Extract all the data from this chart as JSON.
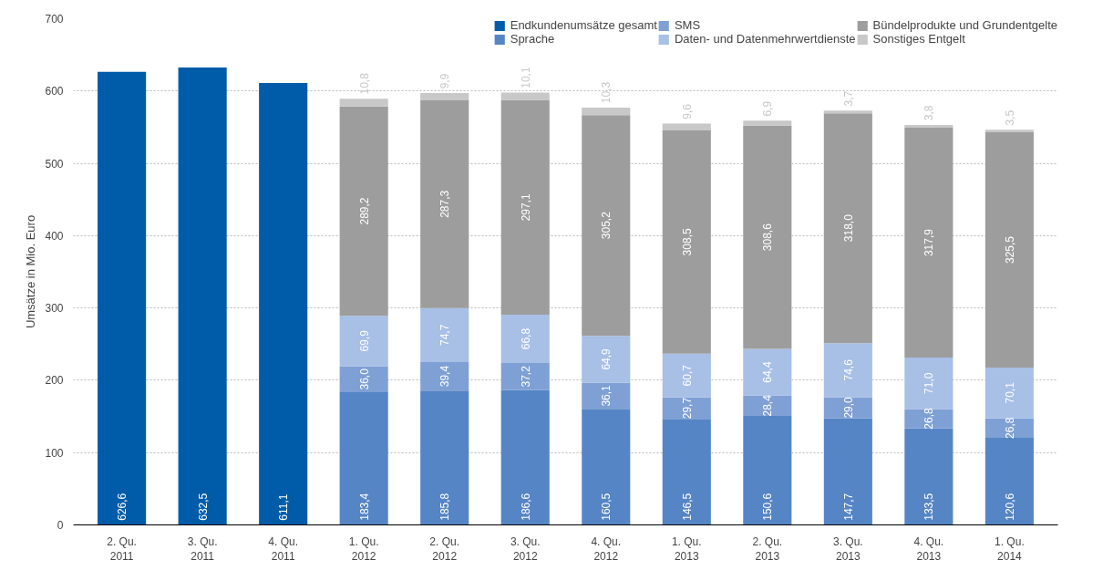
{
  "chart_data": {
    "type": "bar",
    "stacked": true,
    "ylabel": "Umsätze in Mio. Euro",
    "categories": [
      "2. Qu.\n2011",
      "3. Qu.\n2011",
      "4. Qu.\n2011",
      "1. Qu.\n2012",
      "2. Qu.\n2012",
      "3. Qu.\n2012",
      "4. Qu.\n2012",
      "1. Qu.\n2013",
      "2. Qu.\n2013",
      "3. Qu.\n2013",
      "4. Qu.\n2013",
      "1. Qu.\n2014"
    ],
    "series": [
      {
        "name": "Endkundenumsätze gesamt",
        "color": "#005ca9",
        "values": [
          626.6,
          632.5,
          611.1,
          null,
          null,
          null,
          null,
          null,
          null,
          null,
          null,
          null
        ],
        "value_labels": [
          "626,6",
          "632,5",
          "611,1",
          null,
          null,
          null,
          null,
          null,
          null,
          null,
          null,
          null
        ]
      },
      {
        "name": "Sprache",
        "color": "#5585c5",
        "values": [
          null,
          null,
          null,
          183.4,
          185.8,
          186.6,
          160.5,
          146.5,
          150.6,
          147.7,
          133.5,
          120.6
        ],
        "value_labels": [
          null,
          null,
          null,
          "183,4",
          "185,8",
          "186,6",
          "160,5",
          "146,5",
          "150,6",
          "147,7",
          "133,5",
          "120,6"
        ]
      },
      {
        "name": "SMS",
        "color": "#7fa0d4",
        "values": [
          null,
          null,
          null,
          36.0,
          39.4,
          37.2,
          36.1,
          29.7,
          28.4,
          29.0,
          26.8,
          26.8
        ],
        "value_labels": [
          null,
          null,
          null,
          "36,0",
          "39,4",
          "37,2",
          "36,1",
          "29,7",
          "28,4",
          "29,0",
          "26,8",
          "26,8"
        ]
      },
      {
        "name": "Daten- und Datenmehrwertdienste",
        "color": "#a8bfe6",
        "values": [
          null,
          null,
          null,
          69.9,
          74.7,
          66.8,
          64.9,
          60.7,
          64.4,
          74.6,
          71.0,
          70.1
        ],
        "value_labels": [
          null,
          null,
          null,
          "69,9",
          "74,7",
          "66,8",
          "64,9",
          "60,7",
          "64,4",
          "74,6",
          "71,0",
          "70,1"
        ]
      },
      {
        "name": "Bündelprodukte und Grundentgelte",
        "color": "#9d9d9d",
        "values": [
          null,
          null,
          null,
          289.2,
          287.3,
          297.1,
          305.2,
          308.5,
          308.6,
          318.0,
          317.9,
          325.5
        ],
        "value_labels": [
          null,
          null,
          null,
          "289,2",
          "287,3",
          "297,1",
          "305,2",
          "308,5",
          "308,6",
          "318,0",
          "317,9",
          "325,5"
        ]
      },
      {
        "name": "Sonstiges Entgelt",
        "color": "#c8c8c8",
        "values": [
          null,
          null,
          null,
          10.8,
          9.9,
          10.1,
          10.3,
          9.6,
          6.9,
          3.7,
          3.8,
          3.5
        ],
        "value_labels": [
          null,
          null,
          null,
          "10,8",
          "9,9",
          "10,1",
          "10,3",
          "9,6",
          "6,9",
          "3,7",
          "3,8",
          "3,5"
        ]
      }
    ],
    "ylim": [
      0,
      700
    ],
    "yticks": [
      0,
      100,
      200,
      300,
      400,
      500,
      600,
      700
    ],
    "grid": "y",
    "legend": "top right"
  }
}
